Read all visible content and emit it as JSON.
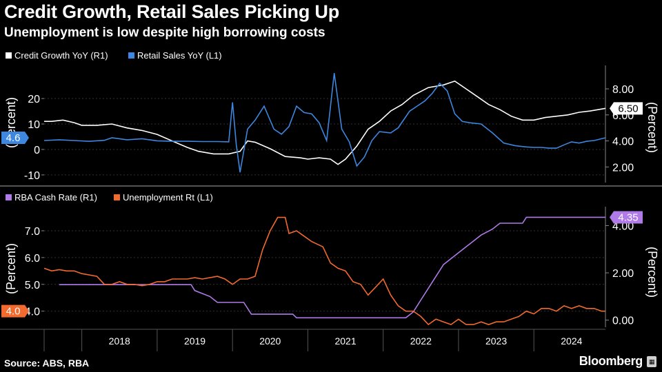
{
  "title": "Credit Growth, Retail Sales Picking Up",
  "subtitle": "Unemployment is low despite high borrowing costs",
  "source": "Source: ABS, RBA",
  "brand": "Bloomberg",
  "colors": {
    "background": "#000000",
    "credit": "#ffffff",
    "retail": "#3d87e0",
    "cash": "#b07ae8",
    "unemployment": "#f26a2e",
    "grid": "#444444",
    "axis": "#aaaaaa"
  },
  "chart_data": [
    {
      "type": "line",
      "panel": "top",
      "x_range": [
        2017.5,
        2024.95
      ],
      "left_axis": {
        "label": "(Percent)",
        "range": [
          -13,
          33
        ],
        "ticks": [
          -10,
          0,
          10,
          20
        ],
        "tick_labels": [
          "-10",
          "0",
          "10",
          "20"
        ]
      },
      "right_axis": {
        "label": "(Percent)",
        "range": [
          0.8,
          9.8
        ],
        "ticks": [
          2,
          4,
          6,
          8
        ],
        "tick_labels": [
          "2.00",
          "4.00",
          "6.00",
          "8.00"
        ]
      },
      "series": [
        {
          "name": "Credit Growth YoY (R1)",
          "axis": "right",
          "color": "#ffffff",
          "last_label": "6.50",
          "points": [
            [
              2017.5,
              5.5
            ],
            [
              2017.6,
              5.5
            ],
            [
              2017.75,
              5.6
            ],
            [
              2017.9,
              5.4
            ],
            [
              2018.0,
              5.2
            ],
            [
              2018.2,
              5.2
            ],
            [
              2018.4,
              5.3
            ],
            [
              2018.6,
              5.0
            ],
            [
              2018.8,
              4.8
            ],
            [
              2019.0,
              4.5
            ],
            [
              2019.2,
              4.0
            ],
            [
              2019.4,
              3.5
            ],
            [
              2019.55,
              3.2
            ],
            [
              2019.75,
              3.0
            ],
            [
              2019.95,
              3.0
            ],
            [
              2020.1,
              3.2
            ],
            [
              2020.2,
              4.0
            ],
            [
              2020.3,
              3.9
            ],
            [
              2020.5,
              3.4
            ],
            [
              2020.7,
              2.8
            ],
            [
              2020.9,
              2.7
            ],
            [
              2021.0,
              2.6
            ],
            [
              2021.15,
              2.7
            ],
            [
              2021.3,
              2.6
            ],
            [
              2021.4,
              2.2
            ],
            [
              2021.5,
              2.6
            ],
            [
              2021.65,
              3.6
            ],
            [
              2021.8,
              4.9
            ],
            [
              2021.95,
              5.5
            ],
            [
              2022.1,
              6.3
            ],
            [
              2022.25,
              6.8
            ],
            [
              2022.4,
              7.5
            ],
            [
              2022.6,
              8.1
            ],
            [
              2022.8,
              8.3
            ],
            [
              2022.95,
              8.6
            ],
            [
              2023.1,
              8.0
            ],
            [
              2023.25,
              7.4
            ],
            [
              2023.4,
              6.8
            ],
            [
              2023.55,
              6.4
            ],
            [
              2023.7,
              5.9
            ],
            [
              2023.85,
              5.6
            ],
            [
              2024.0,
              5.6
            ],
            [
              2024.15,
              5.8
            ],
            [
              2024.3,
              5.9
            ],
            [
              2024.45,
              6.0
            ],
            [
              2024.6,
              6.2
            ],
            [
              2024.75,
              6.3
            ],
            [
              2024.95,
              6.5
            ]
          ]
        },
        {
          "name": "Retail Sales YoY (L1)",
          "axis": "left",
          "color": "#3d87e0",
          "last_label": "4.6",
          "points": [
            [
              2017.5,
              3.5
            ],
            [
              2017.7,
              3.8
            ],
            [
              2017.9,
              3.5
            ],
            [
              2018.1,
              3.2
            ],
            [
              2018.3,
              3.6
            ],
            [
              2018.4,
              4.6
            ],
            [
              2018.6,
              3.8
            ],
            [
              2018.8,
              4.2
            ],
            [
              2019.0,
              3.4
            ],
            [
              2019.2,
              3.2
            ],
            [
              2019.4,
              3.2
            ],
            [
              2019.6,
              3.1
            ],
            [
              2019.8,
              3.1
            ],
            [
              2019.95,
              3.0
            ],
            [
              2020.0,
              18.5
            ],
            [
              2020.05,
              2.0
            ],
            [
              2020.1,
              -9.0
            ],
            [
              2020.2,
              8.0
            ],
            [
              2020.3,
              11.5
            ],
            [
              2020.42,
              17.0
            ],
            [
              2020.55,
              8.0
            ],
            [
              2020.65,
              6.0
            ],
            [
              2020.75,
              9.0
            ],
            [
              2020.85,
              17.0
            ],
            [
              2020.95,
              14.5
            ],
            [
              2021.05,
              14.0
            ],
            [
              2021.15,
              10.5
            ],
            [
              2021.25,
              3.5
            ],
            [
              2021.35,
              30.0
            ],
            [
              2021.45,
              8.0
            ],
            [
              2021.55,
              3.0
            ],
            [
              2021.65,
              -6.5
            ],
            [
              2021.75,
              -3.0
            ],
            [
              2021.85,
              3.5
            ],
            [
              2021.95,
              7.0
            ],
            [
              2022.1,
              6.5
            ],
            [
              2022.2,
              8.5
            ],
            [
              2022.35,
              15.0
            ],
            [
              2022.45,
              17.0
            ],
            [
              2022.55,
              19.0
            ],
            [
              2022.65,
              22.0
            ],
            [
              2022.75,
              26.0
            ],
            [
              2022.85,
              23.0
            ],
            [
              2022.95,
              14.0
            ],
            [
              2023.05,
              11.0
            ],
            [
              2023.15,
              10.5
            ],
            [
              2023.3,
              10.0
            ],
            [
              2023.45,
              6.5
            ],
            [
              2023.6,
              2.5
            ],
            [
              2023.75,
              1.5
            ],
            [
              2023.9,
              1.0
            ],
            [
              2024.0,
              0.8
            ],
            [
              2024.1,
              0.8
            ],
            [
              2024.2,
              0.5
            ],
            [
              2024.3,
              0.5
            ],
            [
              2024.4,
              1.8
            ],
            [
              2024.5,
              3.0
            ],
            [
              2024.6,
              2.5
            ],
            [
              2024.7,
              3.2
            ],
            [
              2024.8,
              3.5
            ],
            [
              2024.95,
              4.6
            ]
          ]
        }
      ]
    },
    {
      "type": "line",
      "panel": "bottom",
      "x_range": [
        2017.5,
        2024.95
      ],
      "categories": [
        "2018",
        "2019",
        "2020",
        "2021",
        "2022",
        "2023",
        "2024"
      ],
      "left_axis": {
        "label": "(Percent)",
        "range": [
          3.4,
          7.9
        ],
        "ticks": [
          4,
          5,
          6,
          7
        ],
        "tick_labels": [
          "4.0",
          "5.0",
          "6.0",
          "7.0"
        ]
      },
      "right_axis": {
        "label": "(Percent)",
        "range": [
          -0.3,
          4.8
        ],
        "ticks": [
          0,
          2,
          4
        ],
        "tick_labels": [
          "0.00",
          "2.00",
          "4.00"
        ]
      },
      "series": [
        {
          "name": "RBA Cash Rate (R1)",
          "axis": "right",
          "color": "#b07ae8",
          "last_label": "4.35",
          "points": [
            [
              2017.7,
              1.5
            ],
            [
              2018.0,
              1.5
            ],
            [
              2019.45,
              1.5
            ],
            [
              2019.5,
              1.25
            ],
            [
              2019.7,
              1.0
            ],
            [
              2019.8,
              0.75
            ],
            [
              2020.15,
              0.75
            ],
            [
              2020.2,
              0.5
            ],
            [
              2020.25,
              0.25
            ],
            [
              2020.8,
              0.25
            ],
            [
              2020.85,
              0.1
            ],
            [
              2022.3,
              0.1
            ],
            [
              2022.4,
              0.35
            ],
            [
              2022.5,
              0.85
            ],
            [
              2022.6,
              1.35
            ],
            [
              2022.7,
              1.85
            ],
            [
              2022.8,
              2.35
            ],
            [
              2022.9,
              2.6
            ],
            [
              2023.0,
              2.85
            ],
            [
              2023.1,
              3.1
            ],
            [
              2023.2,
              3.35
            ],
            [
              2023.3,
              3.6
            ],
            [
              2023.45,
              3.85
            ],
            [
              2023.55,
              4.1
            ],
            [
              2023.85,
              4.1
            ],
            [
              2023.9,
              4.35
            ],
            [
              2024.95,
              4.35
            ]
          ]
        },
        {
          "name": "Unemployment Rt (L1)",
          "axis": "left",
          "color": "#f26a2e",
          "last_label": "4.0",
          "points": [
            [
              2017.5,
              5.6
            ],
            [
              2017.6,
              5.5
            ],
            [
              2017.7,
              5.55
            ],
            [
              2017.8,
              5.5
            ],
            [
              2017.9,
              5.5
            ],
            [
              2018.0,
              5.4
            ],
            [
              2018.2,
              5.3
            ],
            [
              2018.3,
              5.0
            ],
            [
              2018.4,
              5.0
            ],
            [
              2018.5,
              5.1
            ],
            [
              2018.6,
              5.0
            ],
            [
              2018.7,
              5.0
            ],
            [
              2018.8,
              4.95
            ],
            [
              2018.9,
              5.0
            ],
            [
              2019.0,
              5.1
            ],
            [
              2019.1,
              5.1
            ],
            [
              2019.2,
              5.2
            ],
            [
              2019.4,
              5.2
            ],
            [
              2019.5,
              5.25
            ],
            [
              2019.6,
              5.2
            ],
            [
              2019.8,
              5.3
            ],
            [
              2019.9,
              5.2
            ],
            [
              2020.0,
              5.0
            ],
            [
              2020.1,
              5.2
            ],
            [
              2020.2,
              5.2
            ],
            [
              2020.3,
              5.3
            ],
            [
              2020.4,
              6.3
            ],
            [
              2020.5,
              7.0
            ],
            [
              2020.6,
              7.5
            ],
            [
              2020.7,
              7.5
            ],
            [
              2020.75,
              6.9
            ],
            [
              2020.85,
              7.0
            ],
            [
              2020.95,
              6.8
            ],
            [
              2021.05,
              6.6
            ],
            [
              2021.2,
              6.4
            ],
            [
              2021.3,
              5.8
            ],
            [
              2021.4,
              5.6
            ],
            [
              2021.5,
              5.5
            ],
            [
              2021.6,
              5.1
            ],
            [
              2021.7,
              5.0
            ],
            [
              2021.8,
              4.6
            ],
            [
              2021.9,
              4.9
            ],
            [
              2022.0,
              5.2
            ],
            [
              2022.1,
              4.6
            ],
            [
              2022.2,
              4.2
            ],
            [
              2022.3,
              4.0
            ],
            [
              2022.4,
              4.0
            ],
            [
              2022.5,
              3.8
            ],
            [
              2022.6,
              3.5
            ],
            [
              2022.7,
              3.7
            ],
            [
              2022.8,
              3.6
            ],
            [
              2022.9,
              3.5
            ],
            [
              2023.0,
              3.7
            ],
            [
              2023.1,
              3.5
            ],
            [
              2023.2,
              3.5
            ],
            [
              2023.3,
              3.6
            ],
            [
              2023.4,
              3.5
            ],
            [
              2023.5,
              3.6
            ],
            [
              2023.6,
              3.6
            ],
            [
              2023.7,
              3.7
            ],
            [
              2023.8,
              3.8
            ],
            [
              2023.9,
              4.0
            ],
            [
              2024.0,
              3.9
            ],
            [
              2024.1,
              4.1
            ],
            [
              2024.2,
              4.1
            ],
            [
              2024.3,
              4.0
            ],
            [
              2024.4,
              4.2
            ],
            [
              2024.5,
              4.1
            ],
            [
              2024.6,
              4.2
            ],
            [
              2024.7,
              4.1
            ],
            [
              2024.8,
              4.1
            ],
            [
              2024.9,
              4.0
            ],
            [
              2024.95,
              4.0
            ]
          ]
        }
      ]
    }
  ]
}
